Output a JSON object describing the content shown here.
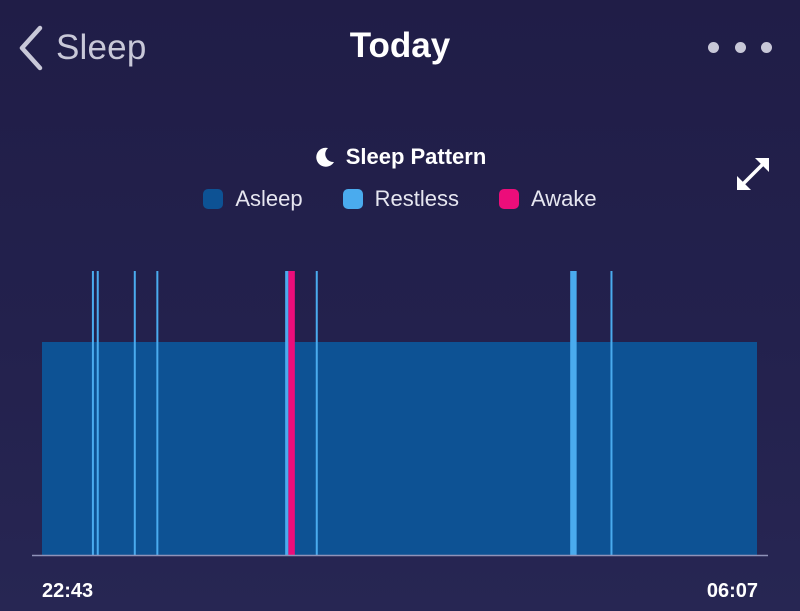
{
  "header": {
    "back_label": "Sleep",
    "title": "Today",
    "back_icon": "chevron-left-icon",
    "more_icon": "more-dots-icon",
    "expand_icon": "expand-icon"
  },
  "chart_data": {
    "type": "timeline",
    "title": "Sleep Pattern",
    "title_icon": "moon-icon",
    "start_time": "22:43",
    "end_time": "06:07",
    "legend": [
      {
        "label": "Asleep",
        "color": "#0d5294"
      },
      {
        "label": "Restless",
        "color": "#4aabee"
      },
      {
        "label": "Awake",
        "color": "#ec0d7a"
      }
    ],
    "segments": [
      {
        "state": "Asleep",
        "start": "22:43",
        "end": "06:07"
      },
      {
        "state": "Restless",
        "start": "23:14",
        "end": "23:15"
      },
      {
        "state": "Restless",
        "start": "23:17",
        "end": "23:18"
      },
      {
        "state": "Restless",
        "start": "23:40",
        "end": "23:41"
      },
      {
        "state": "Restless",
        "start": "23:54",
        "end": "23:55"
      },
      {
        "state": "Restless",
        "start": "01:14",
        "end": "01:16"
      },
      {
        "state": "Awake",
        "start": "01:16",
        "end": "01:20"
      },
      {
        "state": "Restless",
        "start": "01:33",
        "end": "01:34"
      },
      {
        "state": "Restless",
        "start": "04:11",
        "end": "04:15"
      },
      {
        "state": "Restless",
        "start": "04:36",
        "end": "04:37"
      }
    ],
    "grid": false,
    "legend_position": "top"
  }
}
